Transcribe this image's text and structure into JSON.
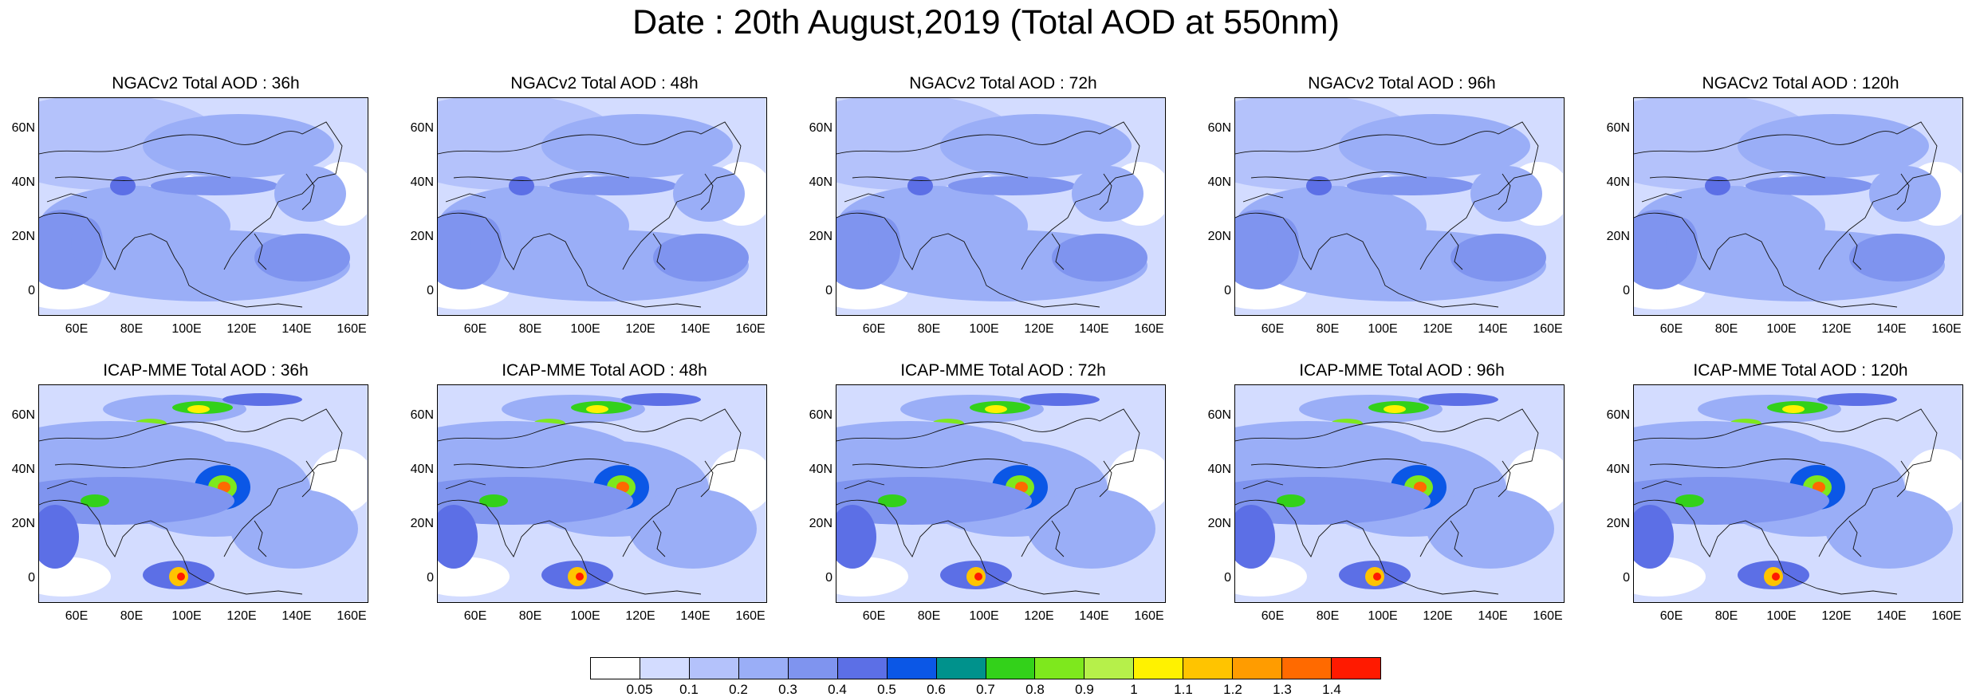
{
  "title": "Date : 20th August,2019 (Total AOD at 550nm)",
  "y_ticks": [
    "60N",
    "40N",
    "20N",
    "0"
  ],
  "x_ticks": [
    "60E",
    "80E",
    "100E",
    "120E",
    "140E",
    "160E"
  ],
  "colorbar": {
    "labels": [
      "0.05",
      "0.1",
      "0.2",
      "0.3",
      "0.4",
      "0.5",
      "0.6",
      "0.7",
      "0.8",
      "0.9",
      "1",
      "1.1",
      "1.2",
      "1.3",
      "1.4"
    ],
    "colors": [
      "#ffffff",
      "#d3dcff",
      "#b4c2fb",
      "#9aaef7",
      "#7f94ef",
      "#5c6fe6",
      "#0b57e6",
      "#00928c",
      "#33d11a",
      "#7ee81d",
      "#b6f04a",
      "#fff200",
      "#ffc400",
      "#ff9c00",
      "#ff6a00",
      "#ff1a00"
    ]
  },
  "panels": [
    {
      "title": "NGACv2 Total AOD : 36h"
    },
    {
      "title": "NGACv2 Total AOD : 48h"
    },
    {
      "title": "NGACv2 Total AOD : 72h"
    },
    {
      "title": "NGACv2 Total AOD : 96h"
    },
    {
      "title": "NGACv2 Total AOD : 120h"
    },
    {
      "title": "ICAP-MME Total AOD : 36h"
    },
    {
      "title": "ICAP-MME Total AOD : 48h"
    },
    {
      "title": "ICAP-MME Total AOD : 72h"
    },
    {
      "title": "ICAP-MME Total AOD : 96h"
    },
    {
      "title": "ICAP-MME Total AOD : 120h"
    }
  ]
}
